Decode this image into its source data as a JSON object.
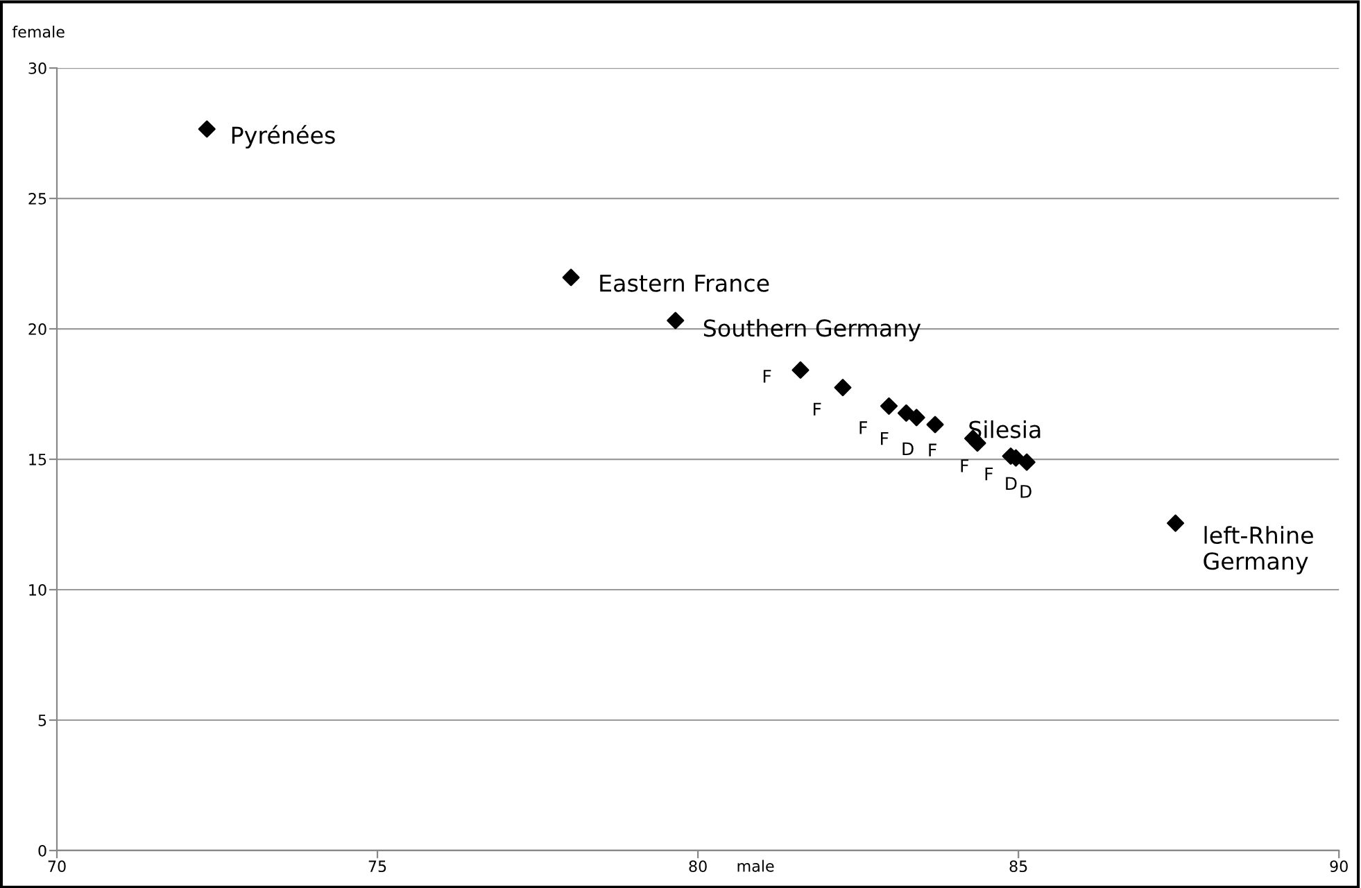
{
  "chart_data": {
    "type": "scatter",
    "xlabel": "male",
    "ylabel": "female",
    "marker": "diamond",
    "grid": "y",
    "xlim": [
      70,
      90
    ],
    "xticks": [
      70,
      75,
      80,
      85,
      90
    ],
    "ylim": [
      0,
      30
    ],
    "yticks": [
      0,
      5,
      10,
      15,
      20,
      25,
      30
    ],
    "series": [
      {
        "color": "#000000",
        "x": [
          72.34,
          78.02,
          79.65,
          81.6,
          82.26,
          82.98,
          83.25,
          83.41,
          83.7,
          84.29,
          84.36,
          84.88,
          84.96,
          85.13,
          87.45
        ],
        "values": [
          27.66,
          21.97,
          20.32,
          18.42,
          17.75,
          17.04,
          16.77,
          16.6,
          16.33,
          15.8,
          15.62,
          15.12,
          15.05,
          14.89,
          12.55
        ],
        "value_labels": [
          "Pyrénées",
          "Eastern France",
          "Southern Germany",
          "F",
          "F",
          "F",
          "F",
          "D",
          "F",
          "F",
          "Silesia",
          "F",
          "D",
          "D",
          "left-Rhine\nGermany"
        ]
      }
    ]
  }
}
